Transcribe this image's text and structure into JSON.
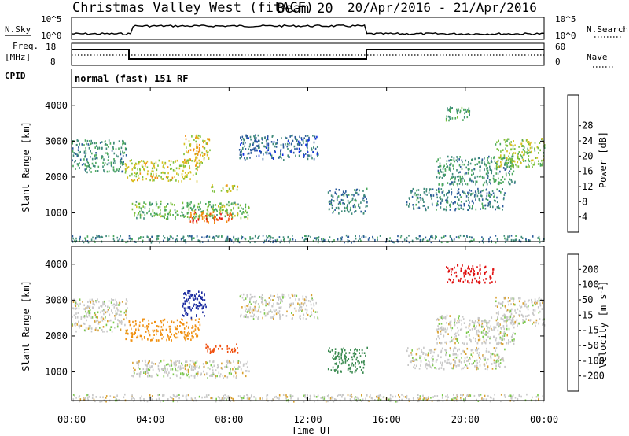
{
  "header": {
    "station": "Christmas Valley West (fitACF)",
    "beam": "Beam 20",
    "dates": "20/Apr/2016 - 21/Apr/2016"
  },
  "left_labels": {
    "nsky": "N.Sky",
    "freq_line1": "Freq.",
    "freq_line2": "[MHz]",
    "cpid": "CPID"
  },
  "right_labels": {
    "nsearch": "N.Search",
    "nave": "Nave"
  },
  "noise_axis": {
    "left_ticks": [
      "10^5",
      "10^0"
    ],
    "right_ticks": [
      "10^5",
      "10^0"
    ]
  },
  "freq_axis": {
    "left_ticks": [
      "18",
      "8"
    ],
    "right_ticks": [
      "60",
      "0"
    ]
  },
  "cpid_text": "normal (fast) 151 RF",
  "x_axis": {
    "label": "Time UT",
    "ticks": [
      "00:00",
      "04:00",
      "08:00",
      "12:00",
      "16:00",
      "20:00",
      "00:00"
    ]
  },
  "chart_data": [
    {
      "type": "heatmap",
      "panel": "power",
      "ylabel": "Slant Range [km]",
      "y_ticks": [
        "1000",
        "2000",
        "3000",
        "4000"
      ],
      "ylim": [
        200,
        4500
      ],
      "xlim_hours": [
        0,
        24
      ],
      "colorbar_label": "Power [dB]",
      "colorbar_ticks": [
        "4",
        "8",
        "12",
        "16",
        "20",
        "24",
        "28"
      ],
      "colormap": [
        "#1030e0",
        "#2a5a9a",
        "#3f8a7a",
        "#4aa85c",
        "#7ac03a",
        "#d8c020",
        "#f09010",
        "#f05010",
        "#e01010"
      ],
      "echo_regions": [
        {
          "t": [
            0.0,
            2.8
          ],
          "range": [
            2150,
            3050
          ],
          "power": 10
        },
        {
          "t": [
            2.7,
            6.5
          ],
          "range": [
            1900,
            2500
          ],
          "power": 18
        },
        {
          "t": [
            5.6,
            7.0
          ],
          "range": [
            2400,
            3200
          ],
          "power": 20
        },
        {
          "t": [
            3.0,
            9.0
          ],
          "range": [
            850,
            1350
          ],
          "power": 14
        },
        {
          "t": [
            6.0,
            8.2
          ],
          "range": [
            750,
            1050
          ],
          "power": 26
        },
        {
          "t": [
            7.0,
            8.5
          ],
          "range": [
            1600,
            1800
          ],
          "power": 18
        },
        {
          "t": [
            8.5,
            12.5
          ],
          "range": [
            2500,
            3200
          ],
          "power": 6
        },
        {
          "t": [
            13.0,
            15.0
          ],
          "range": [
            1000,
            1700
          ],
          "power": 8
        },
        {
          "t": [
            17.0,
            22.0
          ],
          "range": [
            1100,
            1700
          ],
          "power": 8
        },
        {
          "t": [
            18.5,
            22.5
          ],
          "range": [
            1800,
            2600
          ],
          "power": 10
        },
        {
          "t": [
            21.5,
            24.0
          ],
          "range": [
            2300,
            3100
          ],
          "power": 16
        },
        {
          "t": [
            19.0,
            20.2
          ],
          "range": [
            3600,
            4000
          ],
          "power": 12
        },
        {
          "t": [
            0.0,
            24.0
          ],
          "range": [
            200,
            400
          ],
          "power": 8
        }
      ]
    },
    {
      "type": "heatmap",
      "panel": "velocity",
      "ylabel": "Slant Range [km]",
      "y_ticks": [
        "1000",
        "2000",
        "3000",
        "4000"
      ],
      "ylim": [
        200,
        4500
      ],
      "xlim_hours": [
        0,
        24
      ],
      "colorbar_label": "Velocity [m s^-1]",
      "colorbar_ticks": [
        "200",
        "100",
        "50",
        "15",
        "-15",
        "-50",
        "-100",
        "-200"
      ],
      "colormap": [
        "#1a2aa0",
        "#2a6a8a",
        "#3a8a50",
        "#7ac84a",
        "#c8c8c8",
        "#d8a030",
        "#f09010",
        "#f05010",
        "#e01010"
      ],
      "echo_regions": [
        {
          "t": [
            0.0,
            2.8
          ],
          "range": [
            2150,
            3050
          ],
          "velocity": 0
        },
        {
          "t": [
            2.7,
            6.5
          ],
          "range": [
            1900,
            2500
          ],
          "velocity": -40
        },
        {
          "t": [
            5.6,
            6.8
          ],
          "range": [
            2500,
            3300
          ],
          "velocity": 220
        },
        {
          "t": [
            3.0,
            9.0
          ],
          "range": [
            850,
            1350
          ],
          "velocity": 0
        },
        {
          "t": [
            6.8,
            8.5
          ],
          "range": [
            1550,
            1800
          ],
          "velocity": -120
        },
        {
          "t": [
            8.5,
            12.5
          ],
          "range": [
            2500,
            3200
          ],
          "velocity": 0
        },
        {
          "t": [
            13.0,
            15.0
          ],
          "range": [
            1000,
            1700
          ],
          "velocity": 60
        },
        {
          "t": [
            17.0,
            22.0
          ],
          "range": [
            1100,
            1700
          ],
          "velocity": 0
        },
        {
          "t": [
            18.5,
            22.5
          ],
          "range": [
            1800,
            2600
          ],
          "velocity": 0
        },
        {
          "t": [
            21.5,
            24.0
          ],
          "range": [
            2300,
            3100
          ],
          "velocity": 0
        },
        {
          "t": [
            19.0,
            21.5
          ],
          "range": [
            3500,
            4000
          ],
          "velocity": -180
        },
        {
          "t": [
            0.0,
            24.0
          ],
          "range": [
            200,
            400
          ],
          "velocity": 0
        }
      ]
    }
  ]
}
